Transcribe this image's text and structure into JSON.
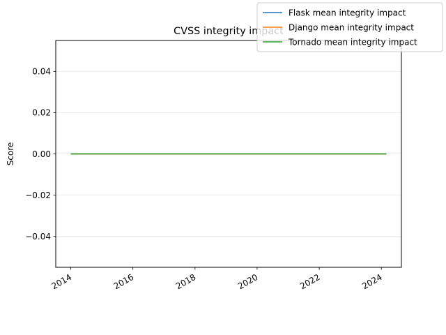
{
  "chart_data": {
    "type": "line",
    "title": "CVSS integrity impact",
    "xlabel": "",
    "ylabel": "Score",
    "x": [
      "2014-01-01",
      "2024-03-01"
    ],
    "series": [
      {
        "name": "Flask mean integrity impact",
        "color": "#1f77b4",
        "values": [
          0.0,
          0.0
        ]
      },
      {
        "name": "Django mean integrity impact",
        "color": "#ff7f0e",
        "values": [
          0.0,
          0.0
        ]
      },
      {
        "name": "Tornado mean integrity impact",
        "color": "#2ca02c",
        "values": [
          0.0,
          0.0
        ]
      }
    ],
    "xlim": [
      "2013-07-08",
      "2024-08-24"
    ],
    "ylim": [
      -0.055,
      0.055
    ],
    "x_ticks": [
      {
        "date": "2014-01-01",
        "label": "2014"
      },
      {
        "date": "2016-01-01",
        "label": "2016"
      },
      {
        "date": "2018-01-01",
        "label": "2018"
      },
      {
        "date": "2020-01-01",
        "label": "2020"
      },
      {
        "date": "2022-01-01",
        "label": "2022"
      },
      {
        "date": "2024-01-01",
        "label": "2024"
      }
    ],
    "y_ticks": [
      {
        "value": 0.04,
        "label": "0.04"
      },
      {
        "value": 0.02,
        "label": "0.02"
      },
      {
        "value": 0.0,
        "label": "0.00"
      },
      {
        "value": -0.02,
        "label": "−0.02"
      },
      {
        "value": -0.04,
        "label": "−0.04"
      }
    ],
    "grid": "horizontal",
    "legend": "top-right"
  }
}
